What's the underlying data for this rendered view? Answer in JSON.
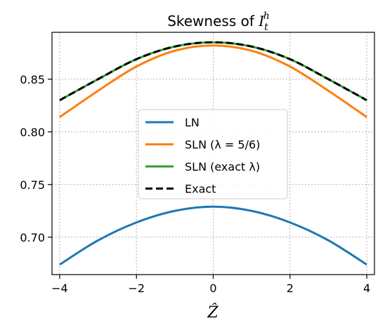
{
  "chart_data": {
    "type": "line",
    "title": "Skewness of I_t^h",
    "title_parts": {
      "main": "Skewness of ",
      "var": "I",
      "sub": "t",
      "sup": "h"
    },
    "xlabel": "Ẑ",
    "ylabel": "",
    "xlim": [
      -4.2,
      4.2
    ],
    "ylim": [
      0.6645,
      0.8945
    ],
    "xticks": [
      -4,
      -2,
      0,
      2,
      4
    ],
    "xtick_labels": [
      "−4",
      "−2",
      "0",
      "2",
      "4"
    ],
    "yticks": [
      0.7,
      0.75,
      0.8,
      0.85
    ],
    "ytick_labels": [
      "0.70",
      "0.75",
      "0.80",
      "0.85"
    ],
    "grid": true,
    "legend_position": "center",
    "x": [
      -4,
      -3,
      -2,
      -1,
      0,
      1,
      2,
      3,
      4
    ],
    "series": [
      {
        "name": "LN",
        "color": "#1f77b4",
        "dash": "solid",
        "values": [
          0.674,
          0.697,
          0.714,
          0.725,
          0.729,
          0.725,
          0.714,
          0.697,
          0.674
        ]
      },
      {
        "name": "SLN (λ = 5/6)",
        "color": "#ff7f0e",
        "dash": "solid",
        "values": [
          0.814,
          0.839,
          0.862,
          0.877,
          0.882,
          0.877,
          0.862,
          0.839,
          0.814
        ]
      },
      {
        "name": "SLN (exact λ)",
        "color": "#2ca02c",
        "dash": "solid",
        "values": [
          0.83,
          0.85,
          0.869,
          0.881,
          0.885,
          0.881,
          0.869,
          0.85,
          0.83
        ]
      },
      {
        "name": "Exact",
        "color": "#000000",
        "dash": "dashed",
        "values": [
          0.83,
          0.85,
          0.869,
          0.881,
          0.885,
          0.881,
          0.869,
          0.85,
          0.83
        ]
      }
    ]
  }
}
